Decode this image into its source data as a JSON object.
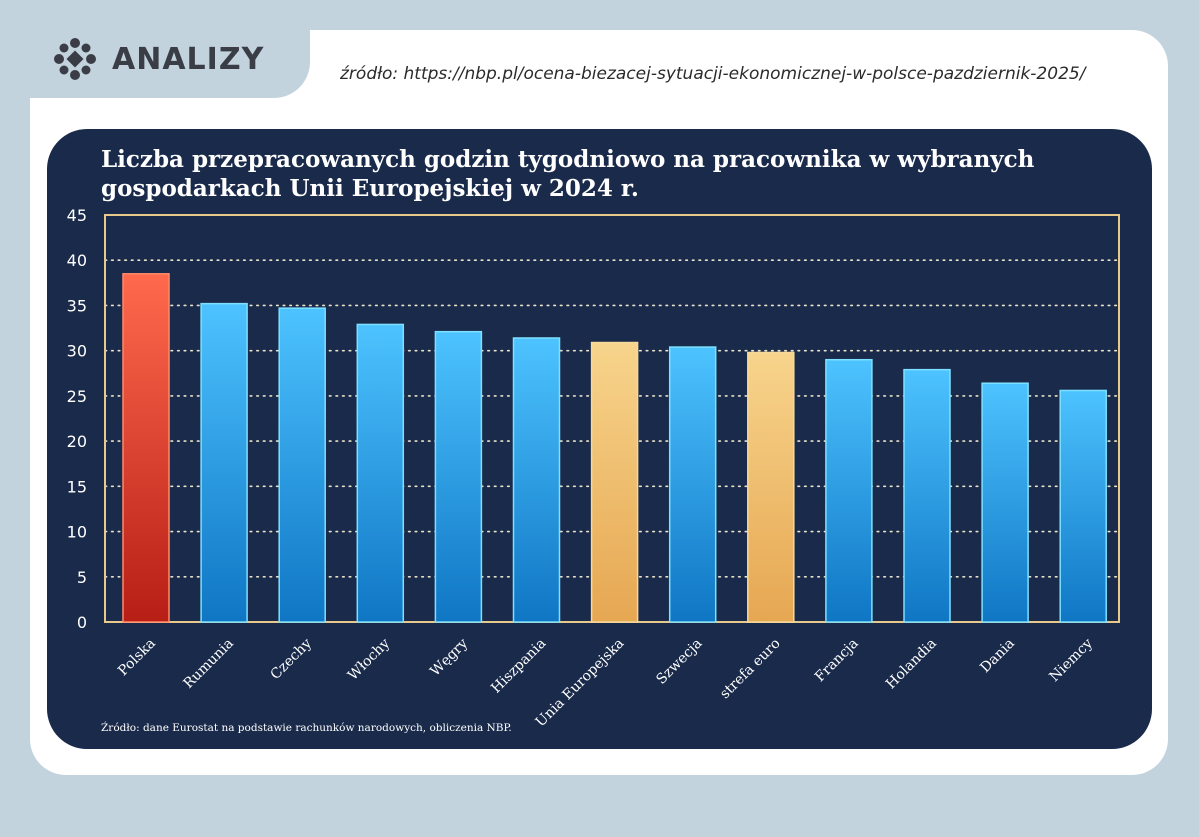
{
  "header": {
    "logo_text": "ANALIZY",
    "source_link": "źródło: https://nbp.pl/ocena-biezacej-sytuacji-ekonomicznej-w-polsce-pazdziernik-2025/"
  },
  "colors": {
    "page_bg": "#c2d3de",
    "panel_bg": "#1a2a4b",
    "frame": "#e7c98c",
    "bar_highlight": "#e64a2e",
    "bar_default": "#2a9be8",
    "bar_eu": "#f0be6c"
  },
  "chart_data": {
    "type": "bar",
    "title": "Liczba przepracowanych godzin tygodniowo na pracownika w wybranych gospodarkach Unii Europejskiej w 2024 r.",
    "title_lines": [
      "Liczba przepracowanych godzin tygodniowo na pracownika w wybranych",
      "gospodarkach Unii Europejskiej w 2024 r."
    ],
    "categories": [
      "Polska",
      "Rumunia",
      "Czechy",
      "Włochy",
      "Węgry",
      "Hiszpania",
      "Unia Europejska",
      "Szwecja",
      "strefa euro",
      "Francja",
      "Holandia",
      "Dania",
      "Niemcy"
    ],
    "values": [
      38.5,
      35.2,
      34.7,
      32.9,
      32.1,
      31.4,
      30.9,
      30.4,
      29.8,
      29.0,
      27.9,
      26.4,
      25.6
    ],
    "bar_groups": [
      "highlight",
      "default",
      "default",
      "default",
      "default",
      "default",
      "eu",
      "default",
      "eu",
      "default",
      "default",
      "default",
      "default"
    ],
    "ylim": [
      0,
      45
    ],
    "yticks": [
      0,
      5,
      10,
      15,
      20,
      25,
      30,
      35,
      40,
      45
    ],
    "xlabel": "",
    "ylabel": "",
    "grid": "dotted horizontal",
    "footnote": "Źródło: dane Eurostat na podstawie rachunków narodowych, obliczenia NBP."
  }
}
